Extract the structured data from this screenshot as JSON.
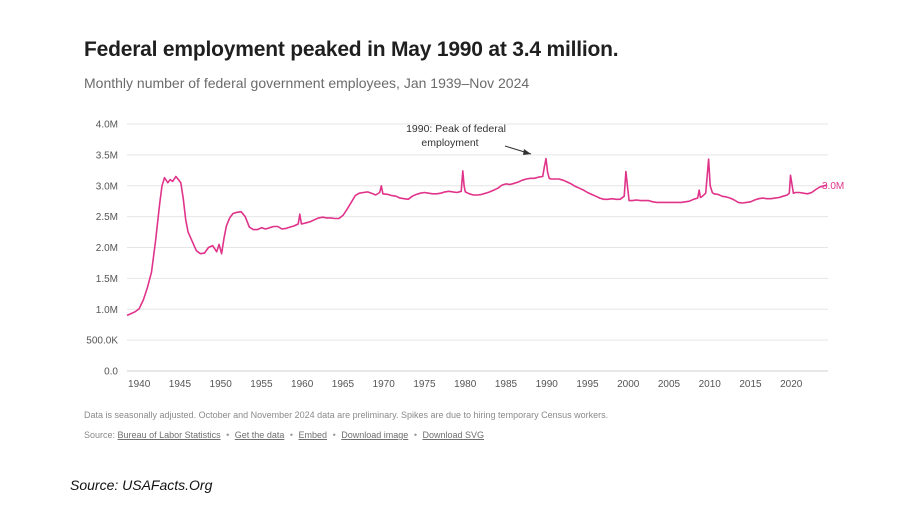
{
  "header": {
    "title": "Federal employment peaked in May 1990 at 3.4 million.",
    "subtitle": "Monthly number of federal government employees, Jan 1939–Nov 2024"
  },
  "footer": {
    "note": "Data is seasonally adjusted. October and November 2024 data are preliminary. Spikes are due to hiring temporary Census workers.",
    "source_prefix": "Source:",
    "links": [
      {
        "label": "Bureau of Labor Statistics"
      },
      {
        "label": "Get the data"
      },
      {
        "label": "Embed"
      },
      {
        "label": "Download image"
      },
      {
        "label": "Download SVG"
      }
    ],
    "separator": "•"
  },
  "attribution": "Source: USAFacts.Org",
  "colors": {
    "line": "#e0338a",
    "grid": "#e6e6e6",
    "axis_text": "#555555"
  },
  "chart_data": {
    "type": "line",
    "title": "Federal employment peaked in May 1990 at 3.4 million.",
    "subtitle": "Monthly number of federal government employees, Jan 1939–Nov 2024",
    "xlim": [
      1939,
      2025
    ],
    "ylim": [
      0,
      4000000
    ],
    "x_ticks": [
      1940,
      1945,
      1950,
      1955,
      1960,
      1965,
      1970,
      1975,
      1980,
      1985,
      1990,
      1995,
      2000,
      2005,
      2010,
      2015,
      2020
    ],
    "y_ticks": [
      {
        "value": 0,
        "label": "0.0"
      },
      {
        "value": 500000,
        "label": "500.0K"
      },
      {
        "value": 1000000,
        "label": "1.0M"
      },
      {
        "value": 1500000,
        "label": "1.5M"
      },
      {
        "value": 2000000,
        "label": "2.0M"
      },
      {
        "value": 2500000,
        "label": "2.5M"
      },
      {
        "value": 3000000,
        "label": "3.0M"
      },
      {
        "value": 3500000,
        "label": "3.5M"
      },
      {
        "value": 4000000,
        "label": "4.0M"
      }
    ],
    "grid": true,
    "end_label": "3.0M",
    "annotation": {
      "text_lines": [
        "1990: Peak of federal",
        "employment"
      ],
      "x": 1990.4,
      "y": 3440000
    },
    "series": [
      {
        "points": [
          [
            1939.0,
            900000
          ],
          [
            1939.5,
            930000
          ],
          [
            1940.0,
            960000
          ],
          [
            1940.5,
            1010000
          ],
          [
            1941.0,
            1150000
          ],
          [
            1941.5,
            1350000
          ],
          [
            1942.0,
            1600000
          ],
          [
            1942.5,
            2100000
          ],
          [
            1943.0,
            2700000
          ],
          [
            1943.3,
            3000000
          ],
          [
            1943.6,
            3130000
          ],
          [
            1944.0,
            3050000
          ],
          [
            1944.3,
            3100000
          ],
          [
            1944.6,
            3070000
          ],
          [
            1945.0,
            3150000
          ],
          [
            1945.3,
            3100000
          ],
          [
            1945.6,
            3050000
          ],
          [
            1945.9,
            2800000
          ],
          [
            1946.2,
            2450000
          ],
          [
            1946.5,
            2250000
          ],
          [
            1947.0,
            2100000
          ],
          [
            1947.5,
            1950000
          ],
          [
            1948.0,
            1900000
          ],
          [
            1948.5,
            1910000
          ],
          [
            1949.0,
            2000000
          ],
          [
            1949.5,
            2030000
          ],
          [
            1950.0,
            1930000
          ],
          [
            1950.3,
            2050000
          ],
          [
            1950.6,
            1900000
          ],
          [
            1950.9,
            2150000
          ],
          [
            1951.2,
            2350000
          ],
          [
            1951.6,
            2480000
          ],
          [
            1952.0,
            2550000
          ],
          [
            1952.5,
            2570000
          ],
          [
            1953.0,
            2580000
          ],
          [
            1953.5,
            2500000
          ],
          [
            1954.0,
            2330000
          ],
          [
            1954.5,
            2290000
          ],
          [
            1955.0,
            2290000
          ],
          [
            1955.5,
            2320000
          ],
          [
            1956.0,
            2300000
          ],
          [
            1956.5,
            2320000
          ],
          [
            1957.0,
            2340000
          ],
          [
            1957.5,
            2340000
          ],
          [
            1958.0,
            2300000
          ],
          [
            1958.5,
            2310000
          ],
          [
            1959.0,
            2330000
          ],
          [
            1959.5,
            2350000
          ],
          [
            1960.0,
            2380000
          ],
          [
            1960.2,
            2540000
          ],
          [
            1960.4,
            2380000
          ],
          [
            1961.0,
            2400000
          ],
          [
            1961.5,
            2420000
          ],
          [
            1962.0,
            2450000
          ],
          [
            1962.5,
            2480000
          ],
          [
            1963.0,
            2490000
          ],
          [
            1963.5,
            2480000
          ],
          [
            1964.0,
            2480000
          ],
          [
            1964.5,
            2470000
          ],
          [
            1965.0,
            2470000
          ],
          [
            1965.5,
            2520000
          ],
          [
            1966.0,
            2620000
          ],
          [
            1966.5,
            2730000
          ],
          [
            1967.0,
            2840000
          ],
          [
            1967.5,
            2880000
          ],
          [
            1968.0,
            2890000
          ],
          [
            1968.5,
            2900000
          ],
          [
            1969.0,
            2880000
          ],
          [
            1969.5,
            2850000
          ],
          [
            1970.0,
            2890000
          ],
          [
            1970.2,
            3000000
          ],
          [
            1970.4,
            2870000
          ],
          [
            1971.0,
            2860000
          ],
          [
            1971.5,
            2840000
          ],
          [
            1972.0,
            2830000
          ],
          [
            1972.5,
            2800000
          ],
          [
            1973.0,
            2790000
          ],
          [
            1973.5,
            2780000
          ],
          [
            1974.0,
            2830000
          ],
          [
            1974.5,
            2860000
          ],
          [
            1975.0,
            2880000
          ],
          [
            1975.5,
            2890000
          ],
          [
            1976.0,
            2880000
          ],
          [
            1976.5,
            2870000
          ],
          [
            1977.0,
            2870000
          ],
          [
            1977.5,
            2880000
          ],
          [
            1978.0,
            2900000
          ],
          [
            1978.5,
            2910000
          ],
          [
            1979.0,
            2900000
          ],
          [
            1979.5,
            2890000
          ],
          [
            1980.0,
            2910000
          ],
          [
            1980.2,
            3240000
          ],
          [
            1980.35,
            3000000
          ],
          [
            1980.5,
            2900000
          ],
          [
            1981.0,
            2870000
          ],
          [
            1981.5,
            2850000
          ],
          [
            1982.0,
            2850000
          ],
          [
            1982.5,
            2860000
          ],
          [
            1983.0,
            2880000
          ],
          [
            1983.5,
            2900000
          ],
          [
            1984.0,
            2930000
          ],
          [
            1984.5,
            2960000
          ],
          [
            1985.0,
            3010000
          ],
          [
            1985.5,
            3030000
          ],
          [
            1986.0,
            3020000
          ],
          [
            1986.5,
            3040000
          ],
          [
            1987.0,
            3060000
          ],
          [
            1987.5,
            3090000
          ],
          [
            1988.0,
            3110000
          ],
          [
            1988.5,
            3120000
          ],
          [
            1989.0,
            3120000
          ],
          [
            1989.5,
            3140000
          ],
          [
            1990.0,
            3150000
          ],
          [
            1990.2,
            3300000
          ],
          [
            1990.4,
            3440000
          ],
          [
            1990.6,
            3220000
          ],
          [
            1990.8,
            3120000
          ],
          [
            1991.0,
            3110000
          ],
          [
            1991.5,
            3110000
          ],
          [
            1992.0,
            3110000
          ],
          [
            1992.5,
            3090000
          ],
          [
            1993.0,
            3060000
          ],
          [
            1993.5,
            3030000
          ],
          [
            1994.0,
            2990000
          ],
          [
            1994.5,
            2960000
          ],
          [
            1995.0,
            2930000
          ],
          [
            1995.5,
            2890000
          ],
          [
            1996.0,
            2860000
          ],
          [
            1996.5,
            2830000
          ],
          [
            1997.0,
            2800000
          ],
          [
            1997.5,
            2780000
          ],
          [
            1998.0,
            2780000
          ],
          [
            1998.5,
            2790000
          ],
          [
            1999.0,
            2780000
          ],
          [
            1999.5,
            2780000
          ],
          [
            2000.0,
            2830000
          ],
          [
            2000.2,
            3230000
          ],
          [
            2000.4,
            2990000
          ],
          [
            2000.6,
            2760000
          ],
          [
            2001.0,
            2760000
          ],
          [
            2001.5,
            2770000
          ],
          [
            2002.0,
            2760000
          ],
          [
            2002.5,
            2760000
          ],
          [
            2003.0,
            2760000
          ],
          [
            2003.5,
            2740000
          ],
          [
            2004.0,
            2730000
          ],
          [
            2004.5,
            2730000
          ],
          [
            2005.0,
            2730000
          ],
          [
            2005.5,
            2730000
          ],
          [
            2006.0,
            2730000
          ],
          [
            2006.5,
            2730000
          ],
          [
            2007.0,
            2730000
          ],
          [
            2007.5,
            2740000
          ],
          [
            2008.0,
            2750000
          ],
          [
            2008.5,
            2780000
          ],
          [
            2009.0,
            2800000
          ],
          [
            2009.2,
            2930000
          ],
          [
            2009.35,
            2810000
          ],
          [
            2009.6,
            2830000
          ],
          [
            2010.0,
            2880000
          ],
          [
            2010.2,
            3200000
          ],
          [
            2010.35,
            3430000
          ],
          [
            2010.55,
            3000000
          ],
          [
            2010.8,
            2890000
          ],
          [
            2011.0,
            2870000
          ],
          [
            2011.5,
            2860000
          ],
          [
            2012.0,
            2830000
          ],
          [
            2012.5,
            2820000
          ],
          [
            2013.0,
            2800000
          ],
          [
            2013.5,
            2770000
          ],
          [
            2014.0,
            2730000
          ],
          [
            2014.5,
            2720000
          ],
          [
            2015.0,
            2730000
          ],
          [
            2015.5,
            2740000
          ],
          [
            2016.0,
            2770000
          ],
          [
            2016.5,
            2790000
          ],
          [
            2017.0,
            2800000
          ],
          [
            2017.5,
            2790000
          ],
          [
            2018.0,
            2790000
          ],
          [
            2018.5,
            2800000
          ],
          [
            2019.0,
            2810000
          ],
          [
            2019.5,
            2830000
          ],
          [
            2020.0,
            2850000
          ],
          [
            2020.25,
            2880000
          ],
          [
            2020.4,
            3170000
          ],
          [
            2020.55,
            3050000
          ],
          [
            2020.75,
            2880000
          ],
          [
            2021.0,
            2890000
          ],
          [
            2021.5,
            2890000
          ],
          [
            2022.0,
            2880000
          ],
          [
            2022.5,
            2870000
          ],
          [
            2023.0,
            2890000
          ],
          [
            2023.5,
            2940000
          ],
          [
            2024.0,
            2980000
          ],
          [
            2024.5,
            3000000
          ],
          [
            2024.9,
            3010000
          ]
        ]
      }
    ]
  }
}
